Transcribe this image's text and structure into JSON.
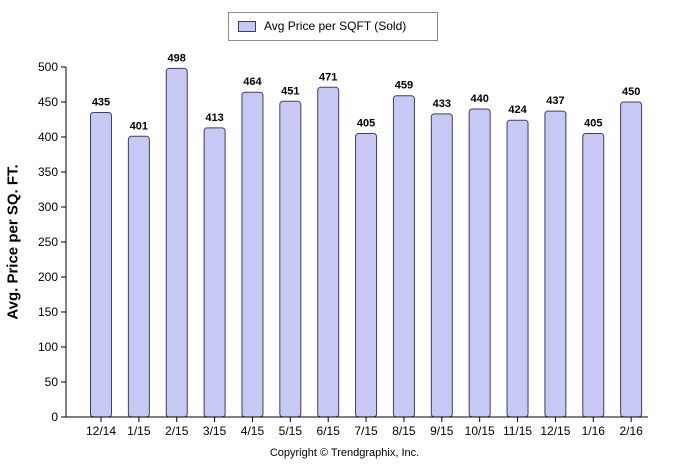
{
  "chart_data": {
    "type": "bar",
    "legend": "Avg Price per SQFT (Sold)",
    "ylabel": "Avg. Price per SQ. FT.",
    "xlabel": "",
    "footer": "Copyright © Trendgraphix, Inc.",
    "categories": [
      "12/14",
      "1/15",
      "2/15",
      "3/15",
      "4/15",
      "5/15",
      "6/15",
      "7/15",
      "8/15",
      "9/15",
      "10/15",
      "11/15",
      "12/15",
      "1/16",
      "2/16"
    ],
    "values": [
      435,
      401,
      498,
      413,
      464,
      451,
      471,
      405,
      459,
      433,
      440,
      424,
      437,
      405,
      450
    ],
    "ylim": [
      0,
      500
    ],
    "yticks": [
      0,
      50,
      100,
      150,
      200,
      250,
      300,
      350,
      400,
      450,
      500
    ],
    "grid": false,
    "legend_position": "top-center",
    "bar_color": "#c8c8f5",
    "bar_border_color": "#3c3c6e"
  }
}
